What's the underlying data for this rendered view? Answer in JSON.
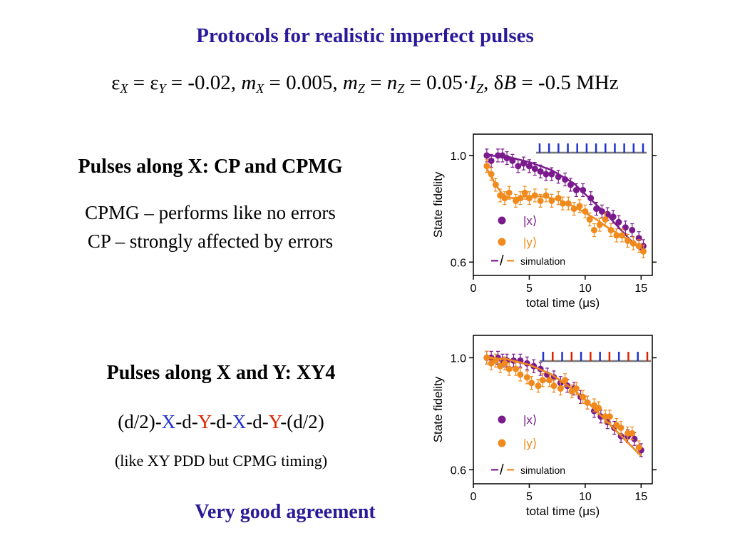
{
  "slide": {
    "title": "Protocols for realistic imperfect pulses",
    "params": {
      "eps": "ε",
      "x_sub": "X",
      "eq1": " = ",
      "y_sub": "Y",
      "eq_val1": " = -0.02,  ",
      "m": "m",
      "eq_val2": " = 0.005,  ",
      "z_sub": "Z",
      "eq_mid": " = ",
      "n": "n",
      "eq_val3": " = 0.05·",
      "I": "I",
      "delta": ",  δ",
      "B": "B",
      "eq_val4": " = -0.5 MHz"
    },
    "section1": {
      "heading": "Pulses along X: CP and CPMG",
      "line1": "CPMG – performs like no errors",
      "line2": "CP – strongly affected by errors"
    },
    "section2": {
      "heading": "Pulses along X and Y: XY4",
      "seq": {
        "p1": "(d/2)-",
        "x1": "X",
        "p2": "-d-",
        "y1": "Y",
        "p3": "-d-",
        "x2": "X",
        "p4": "-d-",
        "y2": "Y",
        "p5": "-(d/2)"
      },
      "note": "(like XY PDD but CPMG timing)"
    },
    "conclusion": "Very good agreement"
  },
  "colors": {
    "purple": "#7a1a8c",
    "orange": "#f08a1c",
    "blue_pulse": "#2233cc",
    "red_pulse": "#dd2200",
    "title": "#2a1a99"
  },
  "chart_data": [
    {
      "type": "scatter",
      "xlabel": "total time (μs)",
      "ylabel": "State fidelity",
      "xlim": [
        0,
        16
      ],
      "ylim": [
        0.55,
        1.08
      ],
      "xticks": [
        "0",
        "5",
        "10",
        "15"
      ],
      "yticks": [
        "0.6",
        "1.0"
      ],
      "legend": {
        "x_label": "|x⟩",
        "y_label": "|y⟩",
        "sim_label": "simulation",
        "sim_sym_a": "−",
        "sim_sym_b": "/",
        "sim_sym_c": "−"
      },
      "pulse_pattern": [
        "X",
        "X",
        "X",
        "X",
        "X",
        "X",
        "X",
        "X",
        "X",
        "X",
        "X",
        "X"
      ],
      "series": [
        {
          "key": "x",
          "x": [
            1.2,
            1.6,
            2.2,
            2.6,
            3.0,
            3.5,
            4.0,
            4.5,
            5.0,
            5.5,
            6.0,
            6.5,
            7.0,
            7.6,
            8.2,
            8.7,
            9.2,
            9.8,
            10.5,
            11.0,
            11.5,
            12.0,
            12.5,
            13.0,
            13.6,
            14.2,
            14.8,
            15.2
          ],
          "y": [
            1.0,
            0.98,
            1.0,
            1.0,
            0.99,
            0.98,
            0.96,
            0.97,
            0.96,
            0.95,
            0.94,
            0.93,
            0.93,
            0.92,
            0.91,
            0.89,
            0.87,
            0.87,
            0.84,
            0.8,
            0.79,
            0.78,
            0.77,
            0.75,
            0.73,
            0.72,
            0.69,
            0.66
          ],
          "sim": {
            "x": [
              1.2,
              3,
              5,
              7,
              9,
              10,
              11,
              12,
              13,
              14,
              15
            ],
            "y": [
              1.0,
              0.996,
              0.975,
              0.945,
              0.895,
              0.855,
              0.815,
              0.775,
              0.73,
              0.685,
              0.645
            ]
          }
        },
        {
          "key": "y",
          "x": [
            1.2,
            1.6,
            2.0,
            2.4,
            2.8,
            3.2,
            3.8,
            4.2,
            4.6,
            5.0,
            5.5,
            6.0,
            6.5,
            7.0,
            7.6,
            8.0,
            8.5,
            9.0,
            9.5,
            10.0,
            10.4,
            10.8,
            11.3,
            11.8,
            12.3,
            12.8,
            13.3,
            13.8,
            14.3,
            14.8,
            15.2
          ],
          "y": [
            0.96,
            0.93,
            0.89,
            0.85,
            0.84,
            0.86,
            0.83,
            0.84,
            0.86,
            0.84,
            0.85,
            0.83,
            0.85,
            0.83,
            0.84,
            0.82,
            0.82,
            0.8,
            0.81,
            0.79,
            0.76,
            0.72,
            0.74,
            0.76,
            0.72,
            0.7,
            0.7,
            0.68,
            0.67,
            0.66,
            0.64
          ],
          "sim": {
            "x": [
              1.0,
              1.5,
              2.0,
              2.5,
              3.0,
              3.5,
              4.0,
              4.5,
              5.0,
              5.5,
              6.0,
              7.0,
              8.0,
              9.0,
              10.0,
              11.0,
              12.0,
              13.0,
              14.0,
              15.0
            ],
            "y": [
              0.965,
              0.93,
              0.89,
              0.86,
              0.845,
              0.84,
              0.842,
              0.846,
              0.848,
              0.848,
              0.847,
              0.84,
              0.828,
              0.808,
              0.785,
              0.76,
              0.73,
              0.705,
              0.68,
              0.655
            ]
          }
        }
      ]
    },
    {
      "type": "scatter",
      "xlabel": "total time (μs)",
      "ylabel": "State fidelity",
      "xlim": [
        0,
        16
      ],
      "ylim": [
        0.55,
        1.08
      ],
      "xticks": [
        "0",
        "5",
        "10",
        "15"
      ],
      "yticks": [
        "0.6",
        "1.0"
      ],
      "legend": {
        "x_label": "|x⟩",
        "y_label": "|y⟩",
        "sim_label": "simulation",
        "sim_sym_a": "−",
        "sim_sym_b": "/",
        "sim_sym_c": "−"
      },
      "pulse_pattern": [
        "X",
        "Y",
        "X",
        "Y",
        "X",
        "Y",
        "X",
        "Y",
        "X",
        "Y",
        "X",
        "Y"
      ],
      "series": [
        {
          "key": "x",
          "x": [
            1.2,
            1.6,
            2.2,
            2.6,
            3.0,
            3.6,
            4.2,
            4.8,
            5.4,
            6.0,
            6.6,
            7.2,
            7.8,
            8.4,
            9.0,
            9.6,
            10.2,
            10.8,
            11.4,
            12.0,
            12.6,
            13.2,
            13.8,
            14.4,
            15.0
          ],
          "y": [
            1.0,
            1.0,
            1.0,
            0.99,
            0.99,
            0.99,
            0.99,
            0.98,
            0.97,
            0.96,
            0.94,
            0.93,
            0.91,
            0.9,
            0.89,
            0.86,
            0.84,
            0.81,
            0.79,
            0.77,
            0.75,
            0.72,
            0.72,
            0.71,
            0.67
          ],
          "sim": {
            "x": [
              1.2,
              3,
              5,
              7,
              9,
              10,
              11,
              12,
              13,
              14,
              15
            ],
            "y": [
              1.0,
              0.995,
              0.975,
              0.94,
              0.885,
              0.85,
              0.81,
              0.77,
              0.73,
              0.69,
              0.65
            ]
          }
        },
        {
          "key": "y",
          "x": [
            1.2,
            1.6,
            2.0,
            2.4,
            2.8,
            3.2,
            3.8,
            4.2,
            4.8,
            5.2,
            5.8,
            6.2,
            6.8,
            7.2,
            7.8,
            8.2,
            8.8,
            9.2,
            9.8,
            10.2,
            10.8,
            11.2,
            11.8,
            12.2,
            12.8,
            13.2,
            13.8,
            14.2,
            14.8
          ],
          "y": [
            1.0,
            0.98,
            0.99,
            0.97,
            0.98,
            0.96,
            0.96,
            0.94,
            0.93,
            0.91,
            0.9,
            0.92,
            0.92,
            0.9,
            0.89,
            0.92,
            0.88,
            0.89,
            0.86,
            0.84,
            0.83,
            0.82,
            0.79,
            0.79,
            0.76,
            0.75,
            0.73,
            0.73,
            0.68
          ],
          "sim": {
            "x": [
              1.2,
              3,
              5,
              7,
              9,
              10,
              11,
              12,
              13,
              14,
              15
            ],
            "y": [
              1.0,
              0.995,
              0.975,
              0.94,
              0.885,
              0.85,
              0.81,
              0.77,
              0.73,
              0.69,
              0.65
            ]
          }
        }
      ]
    }
  ]
}
